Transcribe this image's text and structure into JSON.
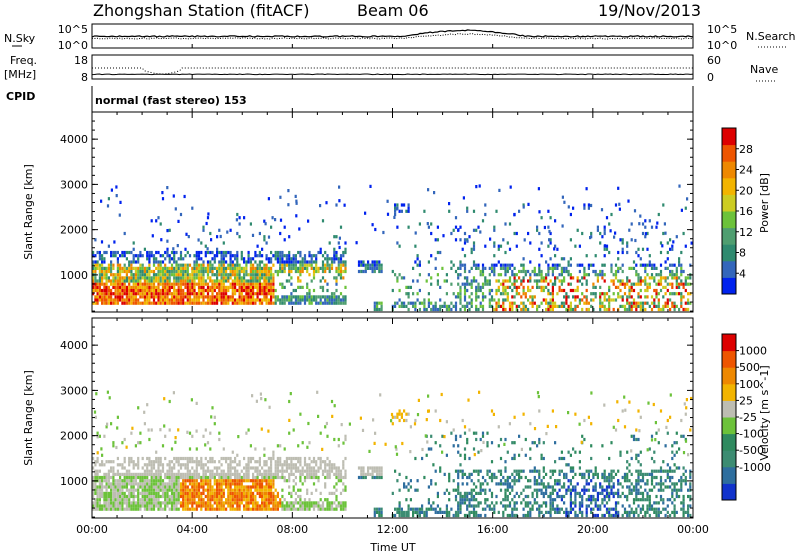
{
  "header": {
    "station": "Zhongshan Station (fitACF)",
    "beam": "Beam 06",
    "date": "19/Nov/2013"
  },
  "top_panels": {
    "nsky_label": "N.Sky",
    "nsky_ticks": [
      "10^5",
      "10^0"
    ],
    "nsearch_label": "N.Search",
    "nsearch_ticks": [
      "10^5",
      "10^0"
    ],
    "freq_label_1": "Freq.",
    "freq_label_2": "[MHz]",
    "freq_ticks": [
      "18",
      "8"
    ],
    "nave_label": "Nave",
    "nave_ticks": [
      "60",
      "0"
    ],
    "cpid_label": "CPID",
    "cpid_text": "normal (fast stereo) 153"
  },
  "chart_data": [
    {
      "type": "heatmap",
      "name": "power-panel",
      "ylabel": "Slant Range [km]",
      "y_ticks": [
        "1000",
        "2000",
        "3000",
        "4000"
      ],
      "ylim": [
        180,
        4600
      ],
      "x_ticks": [
        "00:00",
        "04:00",
        "08:00",
        "12:00",
        "16:00",
        "20:00",
        "00:00"
      ],
      "xlim_hours": [
        0,
        24
      ],
      "colorbar": {
        "label": "Power [dB]",
        "ticks": [
          "4",
          "8",
          "12",
          "16",
          "20",
          "24",
          "28"
        ],
        "range": [
          0,
          32
        ],
        "colors": [
          "#0022ee",
          "#3366bb",
          "#2f8a6f",
          "#4f9e70",
          "#6cc23a",
          "#cccc22",
          "#f2b400",
          "#ee8800",
          "#ee5500",
          "#dd0000"
        ]
      }
    },
    {
      "type": "heatmap",
      "name": "velocity-panel",
      "ylabel": "Slant Range [km]",
      "y_ticks": [
        "1000",
        "2000",
        "3000",
        "4000"
      ],
      "ylim": [
        180,
        4600
      ],
      "x_ticks": [
        "00:00",
        "04:00",
        "08:00",
        "12:00",
        "16:00",
        "20:00",
        "00:00"
      ],
      "xlabel": "Time UT",
      "xlim_hours": [
        0,
        24
      ],
      "colorbar": {
        "label": "Velocity [m s^-1]",
        "ticks": [
          "1000",
          "500",
          "100",
          "25",
          "-25",
          "-100",
          "-500",
          "-1000"
        ],
        "colors": [
          "#1133cc",
          "#2e6e9e",
          "#3c8c72",
          "#2f8a5f",
          "#6cc23a",
          "#bdbdb2",
          "#f2b400",
          "#ee8800",
          "#ee5500",
          "#dd0000"
        ]
      }
    }
  ]
}
